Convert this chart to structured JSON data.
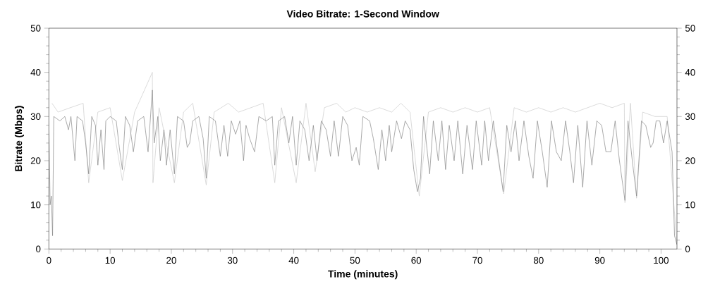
{
  "chart_data": {
    "type": "line",
    "title": "Video Bitrate: 1-Second Window",
    "xlabel": "Time (minutes)",
    "ylabel": "Bitrate (Mbps)",
    "xlim": [
      0,
      102.6
    ],
    "xticks": [
      0,
      10,
      20,
      30,
      40,
      50,
      60,
      70,
      80,
      90,
      100
    ],
    "ylim": [
      0,
      50
    ],
    "yticks": [
      0,
      10,
      20,
      30,
      40,
      50
    ],
    "y2lim": [
      0,
      50
    ],
    "y2ticks": [
      0,
      10,
      20,
      30,
      40,
      50
    ],
    "marker": "none",
    "line_style": "solid",
    "legend": false,
    "grid": false,
    "series": [
      {
        "color": "#c8c8c8",
        "x": [
          0.5,
          1.5,
          3.5,
          5.6,
          6.5,
          8,
          10,
          12,
          14,
          16.9,
          17,
          18,
          20.5,
          22,
          23.5,
          25.7,
          27,
          29.3,
          31,
          33,
          35,
          36.9,
          38,
          40.4,
          42,
          43.5,
          45,
          47,
          48.5,
          50,
          52,
          54,
          56,
          57.5,
          59,
          60.5,
          62,
          64,
          66,
          68,
          70,
          72,
          74.3,
          76,
          78,
          80,
          82,
          84,
          86,
          88,
          90,
          92,
          94,
          94.1,
          95,
          96,
          97,
          99,
          101,
          102.6
        ],
        "values": [
          33,
          31,
          32,
          33,
          15,
          31,
          32,
          15.5,
          31,
          40,
          15,
          32,
          15,
          31,
          33,
          14.5,
          31,
          33,
          31,
          32,
          33,
          15,
          32,
          15,
          33,
          17.5,
          32,
          33,
          31,
          32,
          31,
          32,
          31,
          33,
          31,
          12,
          31,
          32,
          31,
          32,
          31,
          32,
          12.5,
          32,
          31,
          32,
          31,
          32,
          31,
          32,
          33,
          32,
          33,
          10.5,
          33,
          11.5,
          31,
          30,
          30,
          1
        ]
      },
      {
        "color": "#808080",
        "x": [
          0,
          0.2,
          0.4,
          0.6,
          0.8,
          1.8,
          2.6,
          3.2,
          3.6,
          4.25,
          4.6,
          5.5,
          6,
          6.5,
          7,
          7.6,
          8,
          8.5,
          9,
          9.3,
          10,
          11,
          11.5,
          12,
          12.5,
          13.2,
          13.8,
          14.5,
          15.5,
          16.2,
          16.9,
          17.2,
          17.8,
          18.2,
          18.8,
          19.2,
          19.8,
          20.5,
          21,
          22,
          22.6,
          23,
          23.5,
          24.5,
          25.2,
          25.7,
          26.2,
          27.2,
          28,
          28.6,
          29.2,
          29.8,
          30.5,
          31.2,
          31.8,
          32.2,
          32.8,
          33.6,
          34.3,
          35.5,
          36.5,
          36.9,
          37.5,
          38.5,
          39.2,
          39.8,
          40.4,
          41,
          41.8,
          42.5,
          43.2,
          43.8,
          44.5,
          45.3,
          46,
          46.6,
          47.3,
          48,
          48.8,
          49.5,
          50.2,
          50.7,
          51.3,
          52.4,
          53,
          53.8,
          54.4,
          55,
          55.6,
          56,
          56.8,
          57.6,
          58.2,
          59,
          59.6,
          60.2,
          60.7,
          61.2,
          62.2,
          62.8,
          63.6,
          64.2,
          64.8,
          65.4,
          66.2,
          66.8,
          67.6,
          68.3,
          69.2,
          69.8,
          70.7,
          71.2,
          71.8,
          72.6,
          73.4,
          74.2,
          74.8,
          75.5,
          76.2,
          76.8,
          77.6,
          78.4,
          79.1,
          79.8,
          80.6,
          81.4,
          82.1,
          82.9,
          83.7,
          84.4,
          85.1,
          85.7,
          86.4,
          87.2,
          87.9,
          88.7,
          89.5,
          90.3,
          91,
          91.8,
          92.5,
          93.2,
          94.1,
          94.6,
          95.3,
          96,
          96.8,
          97.5,
          98.3,
          98.7,
          99.2,
          99.8,
          100.4,
          101,
          101.8,
          102.2,
          102.6
        ],
        "values": [
          29,
          10,
          12,
          3,
          30,
          29,
          30,
          27,
          30,
          20,
          30,
          29,
          24,
          17,
          30,
          28,
          19,
          27,
          18,
          29,
          30,
          29,
          23,
          18,
          30,
          28,
          22,
          29,
          30,
          22,
          36,
          24,
          30,
          20,
          27,
          19,
          27,
          17,
          30,
          29,
          23,
          24,
          29,
          30,
          25,
          16,
          30,
          29,
          21,
          28,
          21,
          29,
          26,
          29,
          20,
          28,
          25,
          22,
          30,
          29,
          30,
          19,
          29,
          30,
          24,
          30,
          19,
          29,
          27,
          20,
          28,
          20,
          29,
          27,
          21,
          29,
          21,
          30,
          28,
          20,
          23,
          19,
          30,
          29,
          25,
          18,
          27,
          20,
          28,
          22,
          29,
          25,
          29,
          27,
          18,
          13,
          16,
          30,
          17,
          29,
          20,
          29,
          18,
          28,
          20,
          29,
          17,
          28,
          18,
          29,
          19,
          29,
          20,
          29,
          21,
          13,
          28,
          22,
          29,
          20,
          29,
          21,
          16,
          29,
          22,
          14,
          29,
          22,
          20,
          29,
          22,
          15,
          28,
          14,
          29,
          19,
          29,
          28,
          22,
          22,
          29,
          20,
          11,
          29,
          20,
          12,
          29,
          28,
          23,
          24,
          29,
          29,
          24,
          29,
          22,
          3,
          1
        ]
      }
    ]
  }
}
